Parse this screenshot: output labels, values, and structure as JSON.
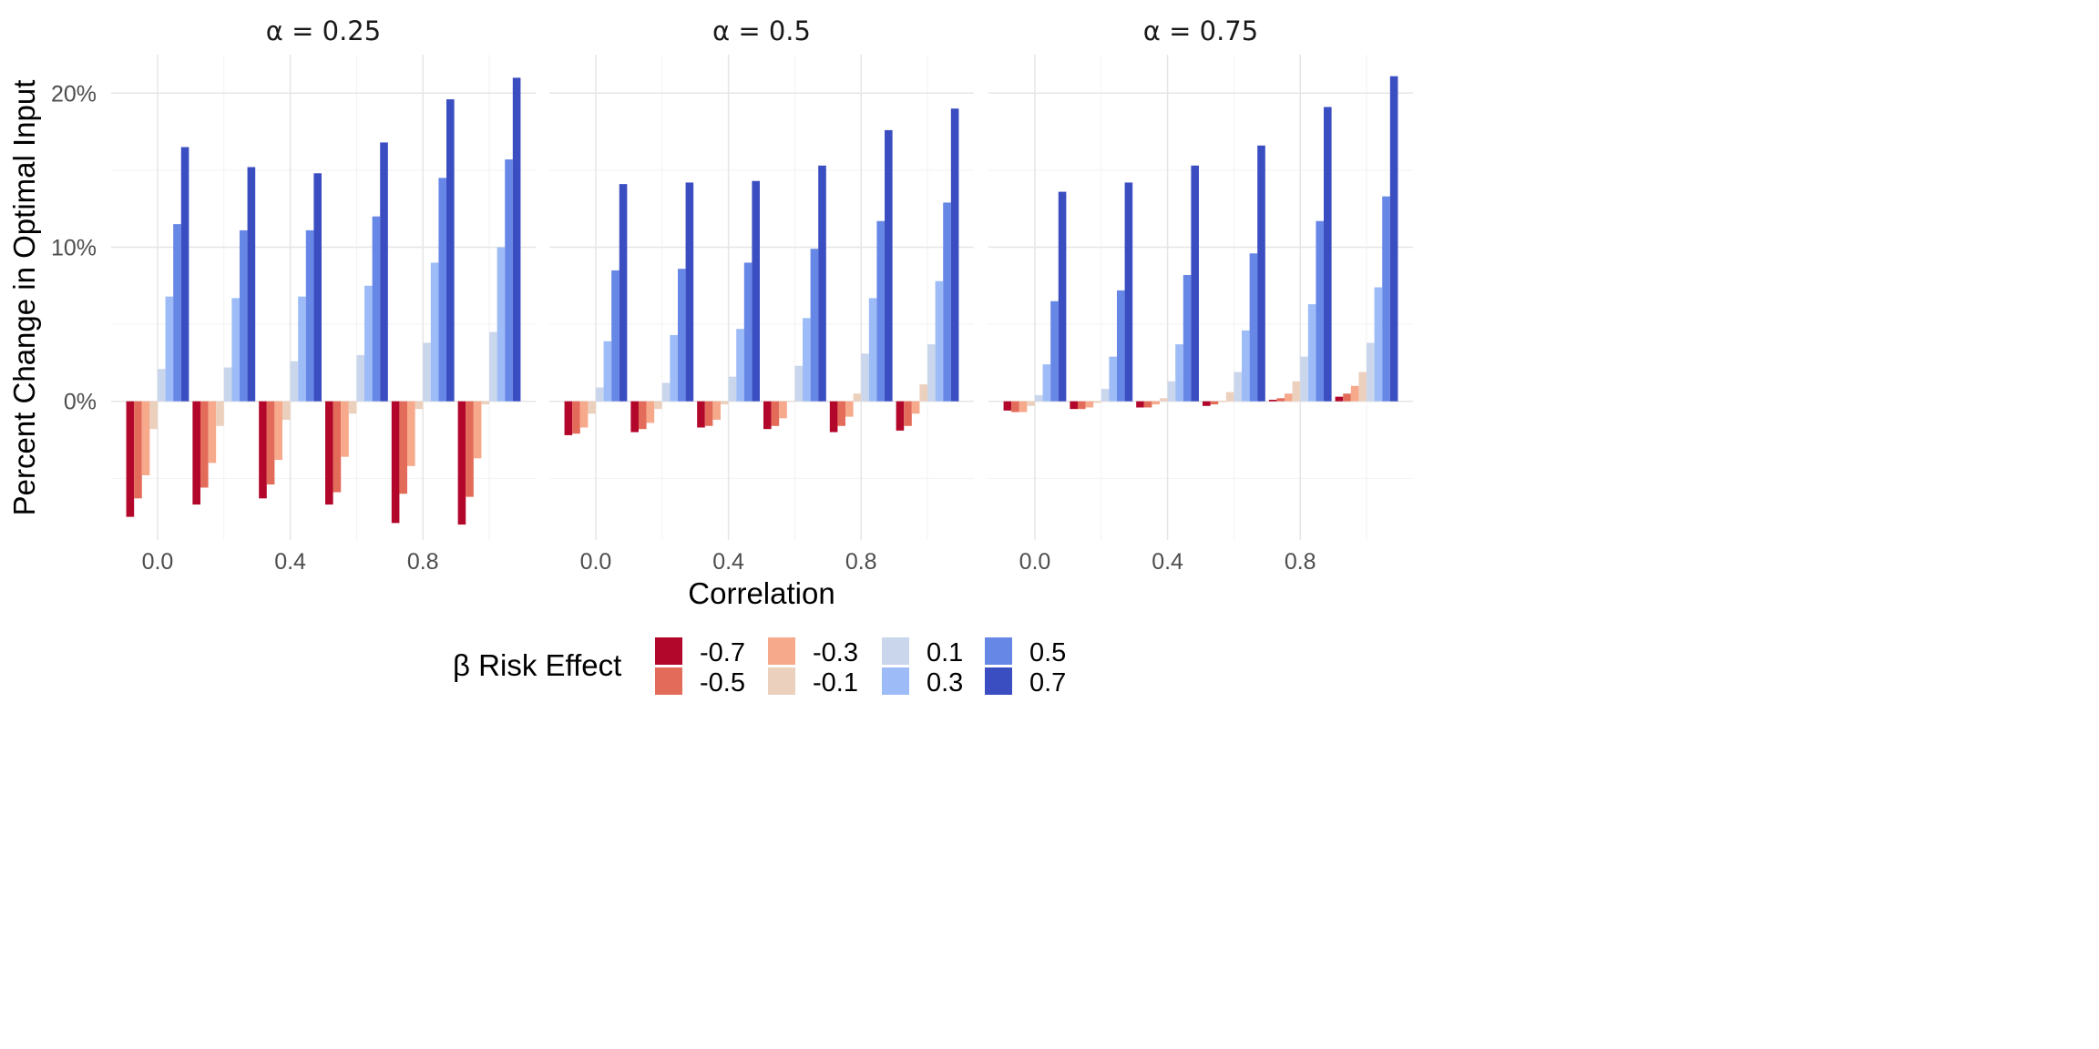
{
  "chart_data": {
    "type": "bar",
    "xlabel": "Correlation",
    "ylabel": "Percent Change in Optimal Input",
    "x_tick_labels": [
      "0.0",
      "0.4",
      "0.8"
    ],
    "y_tick_labels": [
      "0%",
      "10%",
      "20%"
    ],
    "ylim": [
      -9,
      22.5
    ],
    "grid": true,
    "legend": {
      "title": "β Risk Effect",
      "position": "bottom",
      "entries": [
        {
          "label": "-0.7",
          "color": "#B2062A"
        },
        {
          "label": "-0.5",
          "color": "#E36B5A"
        },
        {
          "label": "-0.3",
          "color": "#F6A98B"
        },
        {
          "label": "-0.1",
          "color": "#ECD0BE"
        },
        {
          "label": "0.1",
          "color": "#C9D6EC"
        },
        {
          "label": "0.3",
          "color": "#9DBCF7"
        },
        {
          "label": "0.5",
          "color": "#6787E7"
        },
        {
          "label": "0.7",
          "color": "#3A4DC1"
        }
      ]
    },
    "categories": [
      0,
      0.2,
      0.4,
      0.6,
      0.8,
      1.0
    ],
    "panels": [
      {
        "title": "α = 0.25",
        "series": [
          {
            "name": "-0.7",
            "values": [
              -7.5,
              -6.7,
              -6.3,
              -6.7,
              -7.9,
              -8.0
            ]
          },
          {
            "name": "-0.5",
            "values": [
              -6.3,
              -5.6,
              -5.4,
              -5.9,
              -6.0,
              -6.2
            ]
          },
          {
            "name": "-0.3",
            "values": [
              -4.8,
              -4.0,
              -3.8,
              -3.6,
              -4.2,
              -3.7
            ]
          },
          {
            "name": "-0.1",
            "values": [
              -1.8,
              -1.6,
              -1.2,
              -0.8,
              -0.5,
              -0.2
            ]
          },
          {
            "name": "0.1",
            "values": [
              2.1,
              2.2,
              2.6,
              3.0,
              3.8,
              4.5
            ]
          },
          {
            "name": "0.3",
            "values": [
              6.8,
              6.7,
              6.8,
              7.5,
              9.0,
              10.0
            ]
          },
          {
            "name": "0.5",
            "values": [
              11.5,
              11.1,
              11.1,
              12.0,
              14.5,
              15.7
            ]
          },
          {
            "name": "0.7",
            "values": [
              16.5,
              15.2,
              14.8,
              16.8,
              19.6,
              21.0
            ]
          }
        ]
      },
      {
        "title": "α = 0.5",
        "series": [
          {
            "name": "-0.7",
            "values": [
              -2.2,
              -2.0,
              -1.7,
              -1.8,
              -2.0,
              -1.9
            ]
          },
          {
            "name": "-0.5",
            "values": [
              -2.1,
              -1.8,
              -1.6,
              -1.6,
              -1.6,
              -1.6
            ]
          },
          {
            "name": "-0.3",
            "values": [
              -1.7,
              -1.4,
              -1.2,
              -1.1,
              -1.0,
              -0.8
            ]
          },
          {
            "name": "-0.1",
            "values": [
              -0.8,
              -0.5,
              -0.2,
              0.0,
              0.5,
              1.1
            ]
          },
          {
            "name": "0.1",
            "values": [
              0.9,
              1.2,
              1.6,
              2.3,
              3.1,
              3.7
            ]
          },
          {
            "name": "0.3",
            "values": [
              3.9,
              4.3,
              4.7,
              5.4,
              6.7,
              7.8
            ]
          },
          {
            "name": "0.5",
            "values": [
              8.5,
              8.6,
              9.0,
              9.9,
              11.7,
              12.9
            ]
          },
          {
            "name": "0.7",
            "values": [
              14.1,
              14.2,
              14.3,
              15.3,
              17.6,
              19.0
            ]
          }
        ]
      },
      {
        "title": "α = 0.75",
        "series": [
          {
            "name": "-0.7",
            "values": [
              -0.6,
              -0.5,
              -0.4,
              -0.3,
              0.1,
              0.3
            ]
          },
          {
            "name": "-0.5",
            "values": [
              -0.7,
              -0.5,
              -0.4,
              -0.2,
              0.2,
              0.5
            ]
          },
          {
            "name": "-0.3",
            "values": [
              -0.7,
              -0.4,
              -0.2,
              0.0,
              0.5,
              1.0
            ]
          },
          {
            "name": "-0.1",
            "values": [
              -0.3,
              -0.1,
              0.2,
              0.6,
              1.3,
              1.9
            ]
          },
          {
            "name": "0.1",
            "values": [
              0.4,
              0.8,
              1.3,
              1.9,
              2.9,
              3.8
            ]
          },
          {
            "name": "0.3",
            "values": [
              2.4,
              2.9,
              3.7,
              4.6,
              6.3,
              7.4
            ]
          },
          {
            "name": "0.5",
            "values": [
              6.5,
              7.2,
              8.2,
              9.6,
              11.7,
              13.3
            ]
          },
          {
            "name": "0.7",
            "values": [
              13.6,
              14.2,
              15.3,
              16.6,
              19.1,
              21.1
            ]
          }
        ]
      }
    ]
  }
}
